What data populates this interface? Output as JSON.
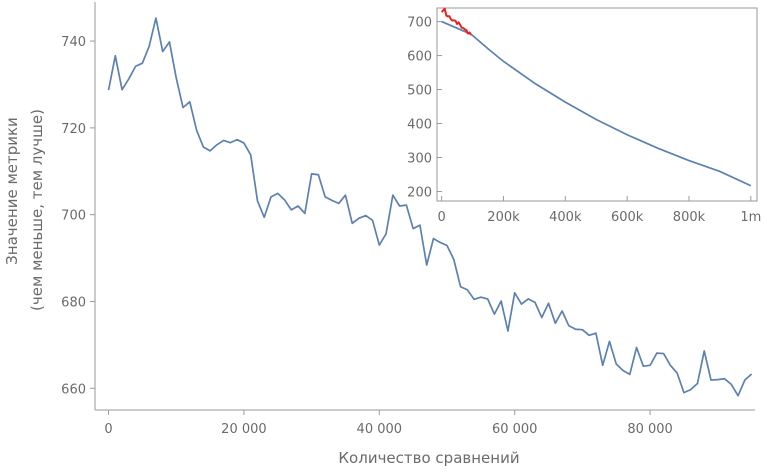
{
  "chart_data": [
    {
      "type": "line",
      "xlabel": "Количество сравнений",
      "ylabel": [
        "Значение метрики",
        "(чем меньше, тем лучше)"
      ],
      "xlim": [
        -2000,
        95500
      ],
      "ylim": [
        655,
        749
      ],
      "x_ticks": [
        0,
        20000,
        40000,
        60000,
        80000
      ],
      "x_tick_labels": [
        "0",
        "20 000",
        "40 000",
        "60 000",
        "80 000"
      ],
      "y_ticks": [
        660,
        680,
        700,
        720,
        740
      ],
      "y_tick_labels": [
        "660",
        "680",
        "700",
        "720",
        "740"
      ],
      "colors": {
        "series": "#5c80b0"
      },
      "series": [
        {
          "x": [
            0,
            1000,
            2000,
            3000,
            4000,
            5000,
            6000,
            7000,
            8000,
            9000,
            10000,
            11000,
            12000,
            13000,
            14000,
            15000,
            16000,
            17000,
            18000,
            19000,
            20000,
            21000,
            22000,
            23000,
            24000,
            25000,
            26000,
            27000,
            28000,
            29000,
            30000,
            31000,
            32000,
            33000,
            34000,
            35000,
            36000,
            37000,
            38000,
            39000,
            40000,
            41000,
            42000,
            43000,
            44000,
            45000,
            46000,
            47000,
            48000,
            49000,
            50000,
            51000,
            52000,
            53000,
            54000,
            55000,
            56000,
            57000,
            58000,
            59000,
            60000,
            61000,
            62000,
            63000,
            64000,
            65000,
            66000,
            67000,
            68000,
            69000,
            70000,
            71000,
            72000,
            73000,
            74000,
            75000,
            76000,
            77000,
            78000,
            79000,
            80000,
            81000,
            82000,
            83000,
            84000,
            85000,
            86000,
            87000,
            88000,
            89000,
            90000,
            91000,
            92000,
            93000,
            94000,
            95000
          ],
          "values": [
            728.7,
            736.6,
            728.8,
            731.3,
            734.2,
            734.9,
            738.8,
            745.3,
            737.6,
            739.8,
            731.5,
            724.7,
            726.0,
            719.5,
            715.6,
            714.7,
            716.1,
            717.1,
            716.6,
            717.3,
            716.5,
            713.8,
            703.2,
            699.4,
            704.1,
            704.9,
            703.4,
            701.1,
            702.0,
            700.3,
            709.4,
            709.2,
            704.1,
            703.3,
            702.6,
            704.5,
            698.0,
            699.2,
            699.8,
            698.7,
            693.0,
            695.6,
            704.5,
            702.0,
            702.2,
            696.8,
            697.6,
            688.4,
            694.5,
            693.6,
            692.9,
            689.7,
            683.4,
            682.7,
            680.5,
            681.0,
            680.6,
            677.1,
            680.1,
            673.2,
            682.0,
            679.4,
            680.6,
            679.8,
            676.3,
            679.6,
            675.0,
            677.8,
            674.4,
            673.6,
            673.5,
            672.2,
            672.7,
            665.3,
            670.8,
            665.6,
            664.1,
            663.2,
            669.4,
            665.1,
            665.3,
            668.1,
            668.0,
            665.3,
            663.5,
            659.0,
            659.7,
            661.1,
            668.6,
            661.9,
            662.0,
            662.2,
            660.9,
            658.3,
            661.9,
            663.3
          ]
        }
      ]
    },
    {
      "type": "line",
      "xlim": [
        -15000,
        1020000
      ],
      "ylim": [
        172,
        740
      ],
      "x_ticks": [
        0,
        200000,
        400000,
        600000,
        800000,
        1000000
      ],
      "x_tick_labels": [
        "0",
        "200k",
        "400k",
        "600k",
        "800k",
        "1m"
      ],
      "y_ticks": [
        200,
        300,
        400,
        500,
        600,
        700
      ],
      "y_tick_labels": [
        "200",
        "300",
        "400",
        "500",
        "600",
        "700"
      ],
      "colors": {
        "series": "#5c80b0",
        "highlight": "#e8231d"
      },
      "series": [
        {
          "x": [
            0,
            95000,
            150000,
            200000,
            300000,
            400000,
            500000,
            600000,
            700000,
            800000,
            900000,
            1000000
          ],
          "values": [
            700,
            663,
            620,
            583,
            519,
            463,
            412,
            367,
            327,
            291,
            259,
            217
          ]
        },
        {
          "x": [
            0,
            5000,
            10000,
            15000,
            20000,
            25000,
            30000,
            35000,
            40000,
            45000,
            50000,
            55000,
            60000,
            65000,
            70000,
            75000,
            80000,
            85000,
            90000,
            95000
          ],
          "values": [
            728,
            733,
            738,
            718,
            715,
            716,
            707,
            703,
            704,
            702,
            693,
            698,
            690,
            682,
            681,
            677,
            675,
            665,
            668,
            661
          ]
        }
      ]
    }
  ]
}
